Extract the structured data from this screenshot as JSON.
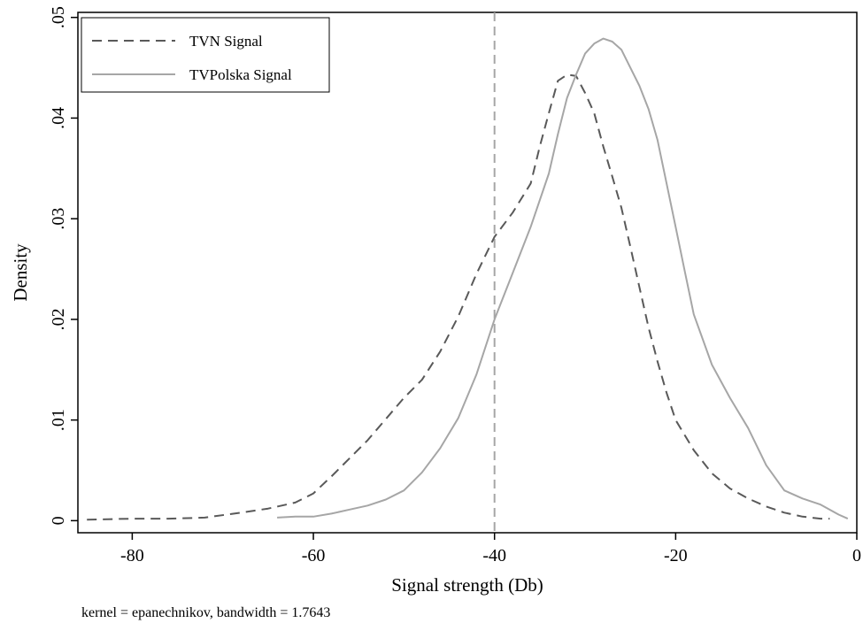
{
  "chart_data": {
    "type": "line",
    "title": "",
    "xlabel": "Signal strength (Db)",
    "ylabel": "Density",
    "note": "kernel = epanechnikov, bandwidth = 1.7643",
    "xlim": [
      -86,
      0
    ],
    "ylim": [
      -0.0012,
      0.0505
    ],
    "x_ticks": [
      -80,
      -60,
      -40,
      -20,
      0
    ],
    "x_tick_labels": [
      "-80",
      "-60",
      "-40",
      "-20",
      "0"
    ],
    "y_ticks": [
      0,
      0.01,
      0.02,
      0.03,
      0.04,
      0.05
    ],
    "y_tick_labels": [
      "0",
      ".01",
      ".02",
      ".03",
      ".04",
      ".05"
    ],
    "grid": false,
    "legend_position": "top-left",
    "reference_line": {
      "x": -40,
      "color": "#a6a6a6",
      "style": "dashed"
    },
    "series": [
      {
        "name": "TVN Signal",
        "color": "#595959",
        "style": "dashed",
        "x": [
          -85,
          -80,
          -76,
          -72,
          -68,
          -65,
          -62,
          -60,
          -58,
          -56,
          -54,
          -52,
          -50,
          -48,
          -46,
          -44,
          -42,
          -40,
          -38,
          -36,
          -35,
          -34,
          -33,
          -32,
          -31,
          -30,
          -29,
          -28,
          -27,
          -26,
          -25,
          -24,
          -23,
          -22,
          -21,
          -20,
          -18,
          -16,
          -14,
          -12,
          -10,
          -8,
          -6,
          -4,
          -3
        ],
        "values": [
          0.0001,
          0.0002,
          0.0002,
          0.0003,
          0.0008,
          0.0012,
          0.0018,
          0.0027,
          0.0044,
          0.0062,
          0.008,
          0.0101,
          0.0122,
          0.014,
          0.0168,
          0.0203,
          0.0245,
          0.0282,
          0.0306,
          0.0335,
          0.0372,
          0.0405,
          0.0437,
          0.0443,
          0.0442,
          0.0425,
          0.0405,
          0.0372,
          0.0342,
          0.0311,
          0.0272,
          0.0232,
          0.0192,
          0.0158,
          0.0127,
          0.01,
          0.007,
          0.0047,
          0.0032,
          0.0022,
          0.0014,
          0.0008,
          0.0004,
          0.0002,
          0.0002
        ]
      },
      {
        "name": "TVPolska Signal",
        "color": "#a6a6a6",
        "style": "solid",
        "x": [
          -64,
          -62,
          -60,
          -58,
          -56,
          -54,
          -52,
          -50,
          -48,
          -46,
          -44,
          -42,
          -40,
          -38,
          -36,
          -34,
          -33,
          -32,
          -31,
          -30,
          -29,
          -28,
          -27,
          -26,
          -25,
          -24,
          -23,
          -22,
          -21,
          -20,
          -19,
          -18,
          -16,
          -14,
          -12,
          -10,
          -8,
          -6,
          -4,
          -2,
          -1
        ],
        "values": [
          0.0003,
          0.0004,
          0.0004,
          0.0007,
          0.0011,
          0.0015,
          0.0021,
          0.003,
          0.0048,
          0.0072,
          0.0102,
          0.0145,
          0.02,
          0.0246,
          0.0292,
          0.0345,
          0.0384,
          0.042,
          0.0443,
          0.0464,
          0.0474,
          0.0479,
          0.0476,
          0.0468,
          0.045,
          0.0432,
          0.0409,
          0.0378,
          0.0335,
          0.0292,
          0.0248,
          0.0205,
          0.0155,
          0.0122,
          0.0092,
          0.0055,
          0.003,
          0.0022,
          0.0016,
          0.0006,
          0.0002
        ]
      }
    ]
  }
}
